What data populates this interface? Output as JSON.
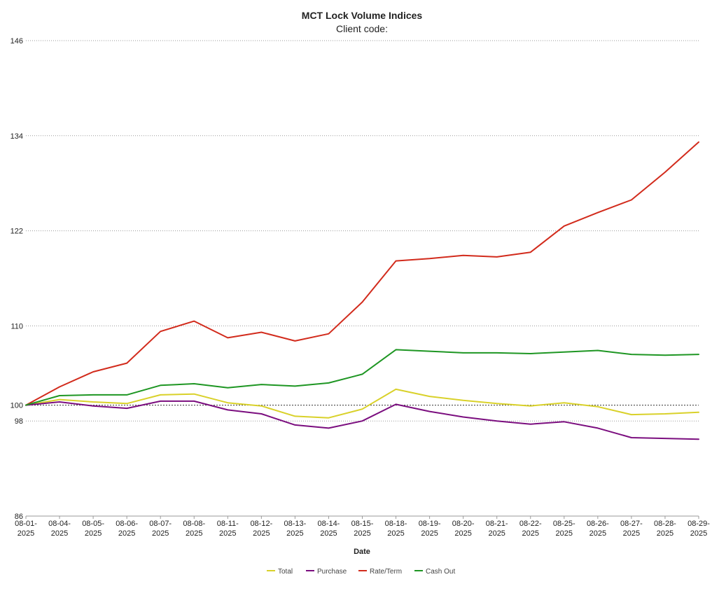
{
  "chart_data": {
    "type": "line",
    "title": "MCT Lock Volume Indices",
    "subtitle": "Client code:",
    "xlabel": "Date",
    "ylabel": "",
    "ylim": [
      86,
      146
    ],
    "yticks": [
      86,
      98,
      100,
      110,
      122,
      134,
      146
    ],
    "reference_line": 100,
    "grid": "dotted horizontal",
    "legend_position": "bottom-center",
    "categories": [
      "08-01-2025",
      "08-04-2025",
      "08-05-2025",
      "08-06-2025",
      "08-07-2025",
      "08-08-2025",
      "08-11-2025",
      "08-12-2025",
      "08-13-2025",
      "08-14-2025",
      "08-15-2025",
      "08-18-2025",
      "08-19-2025",
      "08-20-2025",
      "08-21-2025",
      "08-22-2025",
      "08-25-2025",
      "08-26-2025",
      "08-27-2025",
      "08-28-2025",
      "08-29-2025"
    ],
    "series": [
      {
        "name": "Total",
        "color": "#d9d12a",
        "values": [
          100.0,
          100.7,
          100.4,
          100.2,
          101.3,
          101.4,
          100.3,
          99.9,
          98.6,
          98.4,
          99.5,
          102.0,
          101.1,
          100.6,
          100.2,
          99.9,
          100.3,
          99.8,
          98.8,
          98.9,
          99.1
        ]
      },
      {
        "name": "Purchase",
        "color": "#7b0e7f",
        "values": [
          100.0,
          100.4,
          99.9,
          99.6,
          100.5,
          100.5,
          99.4,
          98.9,
          97.5,
          97.1,
          98.0,
          100.1,
          99.2,
          98.5,
          98.0,
          97.6,
          97.9,
          97.1,
          95.9,
          95.8,
          95.7
        ]
      },
      {
        "name": "Rate/Term",
        "color": "#d22b1c",
        "values": [
          100.0,
          102.3,
          104.2,
          105.3,
          109.3,
          110.6,
          108.5,
          109.2,
          108.1,
          109.0,
          113.0,
          118.2,
          118.5,
          118.9,
          118.7,
          119.3,
          122.6,
          124.3,
          125.9,
          129.4,
          133.2
        ]
      },
      {
        "name": "Cash Out",
        "color": "#1e9623",
        "values": [
          100.0,
          101.2,
          101.3,
          101.3,
          102.5,
          102.7,
          102.2,
          102.6,
          102.4,
          102.8,
          103.9,
          107.0,
          106.8,
          106.6,
          106.6,
          106.5,
          106.7,
          106.9,
          106.4,
          106.3,
          106.4
        ]
      }
    ]
  }
}
